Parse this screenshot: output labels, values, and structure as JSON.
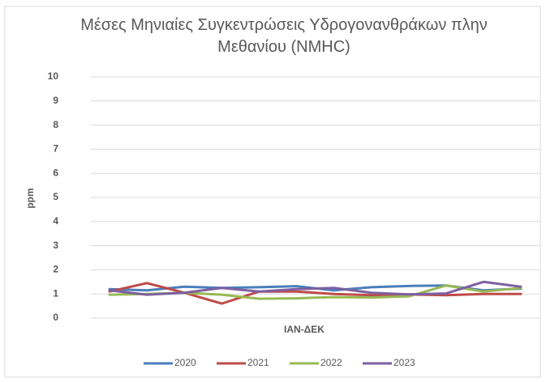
{
  "chart_data": {
    "type": "line",
    "title": "Μέσες Μηνιαίες Συγκεντρώσεις Υδρογονανθράκων πλην Μεθανίου (NMHC)",
    "x_label": "ΙΑΝ-ΔΕΚ",
    "y_label": "ppm",
    "categories": [
      null,
      null,
      null,
      null,
      null,
      null,
      null,
      null,
      null,
      null,
      null,
      null
    ],
    "series": [
      {
        "name": "2020",
        "color": "#4a7ebb",
        "values": [
          1.2,
          1.15,
          1.3,
          1.25,
          1.28,
          1.32,
          1.15,
          1.28,
          1.33,
          1.35,
          1.15,
          1.22
        ]
      },
      {
        "name": "2021",
        "color": "#be4b48",
        "values": [
          1.1,
          1.45,
          1.05,
          0.6,
          1.1,
          1.1,
          1.0,
          0.95,
          0.98,
          0.95,
          1.0,
          1.0
        ]
      },
      {
        "name": "2022",
        "color": "#98b954",
        "values": [
          0.97,
          1.0,
          1.05,
          0.97,
          0.8,
          0.82,
          0.87,
          0.85,
          0.9,
          1.35,
          1.1,
          1.25
        ]
      },
      {
        "name": "2023",
        "color": "#7d60a0",
        "values": [
          1.15,
          0.97,
          1.05,
          1.25,
          1.1,
          1.2,
          1.25,
          1.05,
          0.98,
          1.02,
          1.5,
          1.3
        ]
      }
    ],
    "ylim": [
      0,
      10
    ],
    "yticks": [
      0,
      1,
      2,
      3,
      4,
      5,
      6,
      7,
      8,
      9,
      10
    ],
    "grid": true,
    "legend": "bottom"
  }
}
